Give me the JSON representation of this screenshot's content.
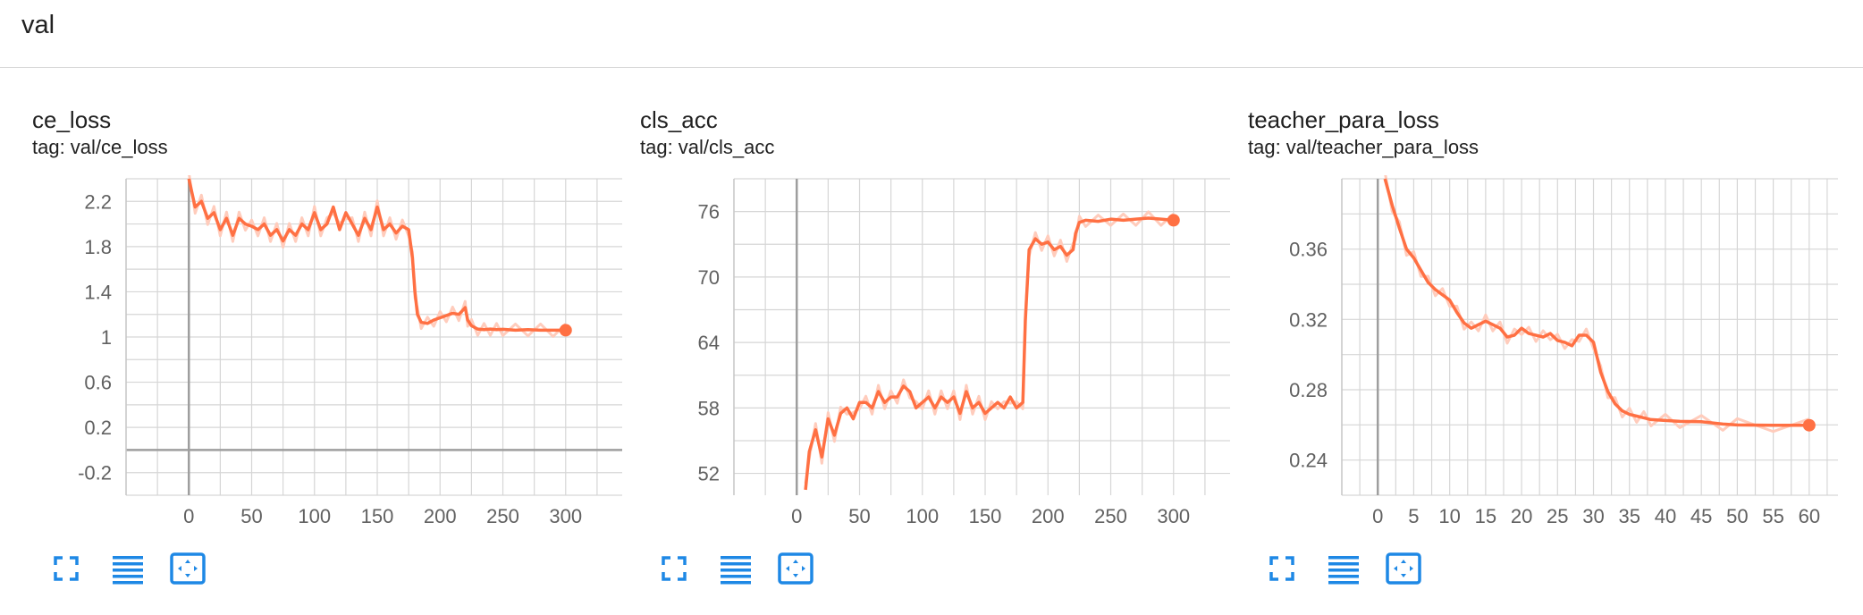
{
  "header": {
    "title": "val"
  },
  "buttons": {
    "fullscreen": "fullscreen-icon",
    "log_scale": "log-scale-icon",
    "fit_domain": "fit-domain-icon"
  },
  "colors": {
    "line": "#ff7043",
    "smooth_raw": "#ffccbc",
    "grid": "#d6d6d6",
    "axis": "#9e9e9e"
  },
  "charts": [
    {
      "title": "ce_loss",
      "tag": "tag: val/ce_loss",
      "chart_data": {
        "type": "line",
        "title": "ce_loss",
        "x_ticks": [
          0,
          50,
          100,
          150,
          200,
          250,
          300
        ],
        "y_ticks": [
          2.2,
          1.8,
          1.4,
          1,
          0.6,
          0.2,
          -0.2
        ],
        "xlim": [
          -50,
          345
        ],
        "ylim": [
          -0.4,
          2.4
        ],
        "series": [
          {
            "x": [
              0,
              5,
              10,
              15,
              20,
              25,
              30,
              35,
              40,
              45,
              50,
              55,
              60,
              65,
              70,
              75,
              80,
              85,
              90,
              95,
              100,
              105,
              110,
              115,
              120,
              125,
              130,
              135,
              140,
              145,
              150,
              155,
              160,
              165,
              170,
              175,
              178,
              180,
              182,
              185,
              190,
              195,
              200,
              205,
              210,
              215,
              220,
              222,
              225,
              230,
              235,
              240,
              245,
              250,
              260,
              270,
              280,
              290,
              300
            ],
            "y": [
              2.4,
              2.15,
              2.2,
              2.05,
              2.1,
              1.95,
              2.05,
              1.9,
              2.05,
              2.0,
              1.98,
              1.95,
              2.0,
              1.9,
              1.95,
              1.85,
              1.95,
              1.9,
              2.0,
              1.95,
              2.1,
              1.95,
              2.0,
              2.15,
              1.95,
              2.1,
              2.0,
              1.9,
              2.05,
              1.95,
              2.15,
              1.95,
              2.0,
              1.92,
              1.98,
              1.95,
              1.7,
              1.4,
              1.2,
              1.13,
              1.12,
              1.15,
              1.17,
              1.19,
              1.21,
              1.2,
              1.26,
              1.15,
              1.1,
              1.07,
              1.065,
              1.07,
              1.065,
              1.068,
              1.06,
              1.065,
              1.06,
              1.06,
              1.06
            ]
          }
        ]
      }
    },
    {
      "title": "cls_acc",
      "tag": "tag: val/cls_acc",
      "chart_data": {
        "type": "line",
        "title": "cls_acc",
        "x_ticks": [
          0,
          50,
          100,
          150,
          200,
          250,
          300
        ],
        "y_ticks": [
          76,
          70,
          64,
          58,
          52
        ],
        "xlim": [
          -50,
          345
        ],
        "ylim": [
          50,
          79
        ],
        "series": [
          {
            "x": [
              7,
              10,
              15,
              20,
              25,
              30,
              35,
              40,
              45,
              50,
              55,
              60,
              65,
              70,
              75,
              80,
              85,
              90,
              95,
              100,
              105,
              110,
              115,
              120,
              125,
              130,
              135,
              140,
              145,
              150,
              155,
              160,
              165,
              170,
              175,
              180,
              182,
              185,
              190,
              195,
              200,
              205,
              210,
              215,
              220,
              222,
              225,
              230,
              240,
              250,
              260,
              270,
              280,
              290,
              300
            ],
            "y": [
              50.5,
              54,
              56,
              53.5,
              57,
              55.5,
              57.5,
              58,
              57,
              58.5,
              58.5,
              58,
              59.5,
              58.5,
              59,
              59,
              60,
              59.5,
              58,
              58.5,
              59,
              58,
              59,
              58.5,
              59,
              57.5,
              59.5,
              58,
              58.5,
              57.5,
              58,
              58.5,
              58,
              59,
              58,
              58.5,
              66,
              72.5,
              73.5,
              73,
              73.2,
              72.5,
              72.8,
              72,
              72.5,
              74,
              75,
              75.2,
              75.1,
              75.3,
              75.2,
              75.3,
              75.4,
              75.3,
              75.2
            ]
          }
        ]
      }
    },
    {
      "title": "teacher_para_loss",
      "tag": "tag: val/teacher_para_loss",
      "chart_data": {
        "type": "line",
        "title": "teacher_para_loss",
        "x_ticks": [
          0,
          5,
          10,
          15,
          20,
          25,
          30,
          35,
          40,
          45,
          50,
          55,
          60
        ],
        "y_ticks": [
          0.36,
          0.32,
          0.28,
          0.24
        ],
        "xlim": [
          -5,
          64
        ],
        "ylim": [
          0.22,
          0.4
        ],
        "series": [
          {
            "x": [
              1,
              2,
              3,
              4,
              5,
              6,
              7,
              8,
              9,
              10,
              11,
              12,
              13,
              14,
              15,
              16,
              17,
              18,
              19,
              20,
              21,
              22,
              23,
              24,
              25,
              26,
              27,
              28,
              29,
              30,
              31,
              32,
              33,
              34,
              35,
              36,
              37,
              38,
              40,
              42,
              45,
              48,
              50,
              55,
              60
            ],
            "y": [
              0.4,
              0.385,
              0.372,
              0.36,
              0.355,
              0.348,
              0.341,
              0.337,
              0.334,
              0.331,
              0.324,
              0.318,
              0.315,
              0.317,
              0.319,
              0.317,
              0.315,
              0.31,
              0.311,
              0.315,
              0.312,
              0.311,
              0.31,
              0.312,
              0.308,
              0.307,
              0.305,
              0.311,
              0.311,
              0.307,
              0.29,
              0.279,
              0.272,
              0.268,
              0.266,
              0.265,
              0.264,
              0.263,
              0.2625,
              0.262,
              0.2618,
              0.2605,
              0.26,
              0.2598,
              0.2598
            ]
          }
        ]
      }
    }
  ]
}
